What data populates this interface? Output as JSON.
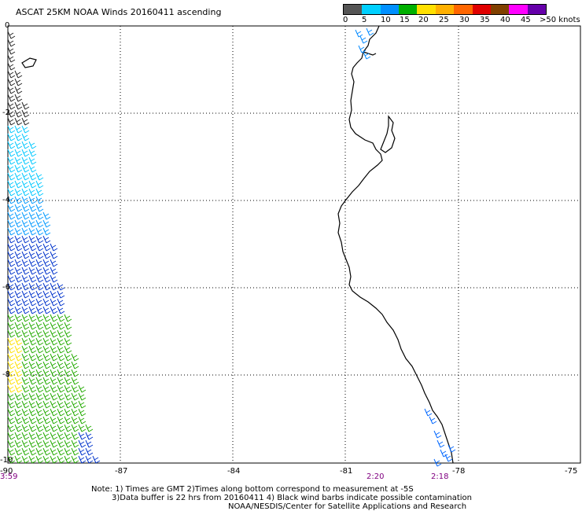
{
  "title": "ASCAT 25KM NOAA Winds 20160411 ascending",
  "legend": {
    "labels": [
      "0",
      "5",
      "10",
      "15",
      "20",
      "25",
      "30",
      "35",
      "40",
      "45",
      ">50 knots"
    ],
    "colors": [
      "#555555",
      "#00d0ff",
      "#0090ff",
      "#00b000",
      "#ffe000",
      "#ffb000",
      "#ff6600",
      "#e00000",
      "#804000",
      "#ff00ff",
      "#6600aa"
    ]
  },
  "axes": {
    "y_labels": [
      "0",
      "-2",
      "-4",
      "-6",
      "-8",
      "-10"
    ],
    "x_labels": [
      "-90",
      "-87",
      "-84",
      "-81",
      "-78",
      "-75"
    ]
  },
  "times": {
    "left": "3:59",
    "mid": "2:20",
    "right": "2:18"
  },
  "notes": {
    "line1": "Note: 1) Times are GMT 2)Times along bottom correspond to measurement at -5S",
    "line2": "3)Data buffer is 22 hrs from 20160411 4) Black wind barbs indicate possible contamination",
    "line3": "NOAA/NESDIS/Center for Satellite Applications and Research"
  }
}
